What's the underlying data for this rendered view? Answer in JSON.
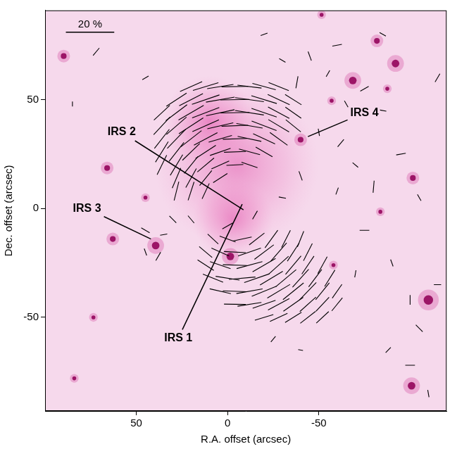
{
  "chart_data": {
    "type": "scatter",
    "x_label": "R.A. offset (arcsec)",
    "y_label": "Dec. offset (arcsec)",
    "xlim": [
      100,
      -120
    ],
    "ylim": [
      -93,
      91
    ],
    "xticks": [
      50,
      0,
      -50
    ],
    "yticks": [
      -50,
      0,
      50
    ],
    "grid": false,
    "color": "#000000",
    "scale_bar": {
      "label": "20 %",
      "value": 20,
      "x": [
        88.6,
        62.1
      ],
      "y": 81
    },
    "annotations": [
      {
        "text": "IRS 2",
        "x": 58,
        "y": 35,
        "target": [
          -8.7,
          -0.6
        ]
      },
      {
        "text": "IRS 3",
        "x": 77,
        "y": 0,
        "target": [
          42,
          -14
        ]
      },
      {
        "text": "IRS 1",
        "x": 27,
        "y": -59.5,
        "target": [
          -8,
          2
        ]
      },
      {
        "text": "IRS 4",
        "x": -75,
        "y": 44,
        "target": [
          -44,
          33
        ]
      }
    ],
    "nebula": [
      [
        -5,
        20,
        45
      ],
      [
        -3,
        -5,
        22
      ],
      [
        10,
        40,
        25
      ]
    ],
    "stars": [
      [
        89.8,
        70,
        2
      ],
      [
        -68.6,
        58.8,
        3
      ],
      [
        -92,
        66.6,
        3
      ],
      [
        -110,
        -42,
        4
      ],
      [
        -100.8,
        -81.4,
        3
      ],
      [
        -81.8,
        77,
        2
      ],
      [
        -101.5,
        14,
        2
      ],
      [
        -1.5,
        -22,
        3
      ],
      [
        39.4,
        -17,
        3
      ],
      [
        62.9,
        -14,
        2
      ],
      [
        66,
        18.6,
        2
      ],
      [
        45,
        5,
        1
      ],
      [
        -40,
        31.6,
        2
      ],
      [
        -83.7,
        -1.5,
        1
      ],
      [
        -58,
        -26,
        1
      ],
      [
        84,
        -78,
        1
      ],
      [
        73.5,
        -50,
        1
      ],
      [
        -51.5,
        89,
        1
      ],
      [
        -57,
        49.5,
        1
      ],
      [
        -87.5,
        55,
        1
      ]
    ],
    "vectors": [
      [
        20,
        56,
        10,
        114
      ],
      [
        12,
        56,
        11,
        107
      ],
      [
        4,
        56,
        11,
        99
      ],
      [
        -4,
        56,
        11,
        91
      ],
      [
        -12,
        56,
        10,
        83
      ],
      [
        -20,
        56,
        10,
        75
      ],
      [
        -28,
        56,
        9,
        68
      ],
      [
        28,
        50,
        10,
        123
      ],
      [
        20,
        50,
        11,
        117
      ],
      [
        12,
        50,
        12,
        109
      ],
      [
        4,
        50,
        12,
        100
      ],
      [
        -4,
        50,
        12,
        91
      ],
      [
        -12,
        50,
        12,
        82
      ],
      [
        -20,
        50,
        11,
        73
      ],
      [
        -28,
        50,
        10,
        65
      ],
      [
        -36,
        50,
        8,
        58
      ],
      [
        36,
        44,
        9,
        133
      ],
      [
        28,
        44,
        11,
        127
      ],
      [
        20,
        44,
        12,
        120
      ],
      [
        12,
        44,
        12,
        111
      ],
      [
        4,
        44,
        12,
        102
      ],
      [
        -4,
        44,
        12,
        91
      ],
      [
        -12,
        44,
        12,
        81
      ],
      [
        -20,
        44,
        11,
        71
      ],
      [
        -28,
        44,
        10,
        62
      ],
      [
        -36,
        44,
        8,
        55
      ],
      [
        36,
        38,
        10,
        137
      ],
      [
        28,
        38,
        11,
        131
      ],
      [
        20,
        38,
        12,
        123
      ],
      [
        12,
        38,
        12,
        114
      ],
      [
        4,
        38,
        11,
        103
      ],
      [
        -4,
        38,
        11,
        92
      ],
      [
        -12,
        38,
        11,
        80
      ],
      [
        -20,
        38,
        11,
        69
      ],
      [
        -28,
        38,
        10,
        59
      ],
      [
        -36,
        38,
        8,
        51
      ],
      [
        36,
        32,
        10,
        142
      ],
      [
        28,
        32,
        11,
        136
      ],
      [
        20,
        32,
        11,
        128
      ],
      [
        12,
        32,
        11,
        118
      ],
      [
        4,
        32,
        10,
        106
      ],
      [
        -4,
        32,
        10,
        92
      ],
      [
        -12,
        32,
        10,
        78
      ],
      [
        -20,
        32,
        10,
        65
      ],
      [
        -28,
        32,
        9,
        54
      ],
      [
        36,
        26,
        10,
        148
      ],
      [
        28,
        26,
        10,
        142
      ],
      [
        20,
        26,
        10,
        134
      ],
      [
        12,
        26,
        10,
        123
      ],
      [
        4,
        26,
        9,
        109
      ],
      [
        -4,
        26,
        9,
        92
      ],
      [
        -12,
        26,
        9,
        75
      ],
      [
        -20,
        26,
        8,
        60
      ],
      [
        36,
        20,
        9,
        154
      ],
      [
        28,
        20,
        10,
        149
      ],
      [
        20,
        20,
        9,
        141
      ],
      [
        12,
        20,
        9,
        130
      ],
      [
        4,
        20,
        8,
        114
      ],
      [
        -4,
        20,
        7,
        93
      ],
      [
        -12,
        20,
        7,
        71
      ],
      [
        28,
        14,
        9,
        157
      ],
      [
        20,
        14,
        9,
        151
      ],
      [
        12,
        14,
        8,
        141
      ],
      [
        4,
        14,
        7,
        123
      ],
      [
        28,
        8,
        8,
        166
      ],
      [
        20,
        8,
        8,
        162
      ],
      [
        12,
        8,
        7,
        155
      ],
      [
        8,
        -14,
        6,
        47
      ],
      [
        0,
        -14,
        7,
        70
      ],
      [
        -8,
        -14,
        8,
        102
      ],
      [
        -16,
        -14,
        8,
        128
      ],
      [
        -24,
        -14,
        9,
        144
      ],
      [
        -32,
        -14,
        8,
        153
      ],
      [
        -40,
        -14,
        7,
        158
      ],
      [
        12,
        -20,
        7,
        50
      ],
      [
        4,
        -20,
        8,
        66
      ],
      [
        -4,
        -20,
        9,
        87
      ],
      [
        -12,
        -20,
        10,
        109
      ],
      [
        -20,
        -20,
        10,
        127
      ],
      [
        -28,
        -20,
        10,
        139
      ],
      [
        -36,
        -20,
        9,
        147
      ],
      [
        -44,
        -20,
        8,
        153
      ],
      [
        12,
        -26,
        8,
        57
      ],
      [
        4,
        -26,
        9,
        71
      ],
      [
        -4,
        -26,
        10,
        88
      ],
      [
        -12,
        -26,
        11,
        105
      ],
      [
        -20,
        -26,
        11,
        120
      ],
      [
        -28,
        -26,
        11,
        132
      ],
      [
        -36,
        -26,
        10,
        140
      ],
      [
        -44,
        -26,
        9,
        146
      ],
      [
        -52,
        -26,
        8,
        151
      ],
      [
        8,
        -32,
        9,
        68
      ],
      [
        0,
        -32,
        10,
        81
      ],
      [
        -8,
        -32,
        11,
        95
      ],
      [
        -16,
        -32,
        11,
        109
      ],
      [
        -24,
        -32,
        11,
        121
      ],
      [
        -32,
        -32,
        11,
        130
      ],
      [
        -40,
        -32,
        10,
        138
      ],
      [
        -48,
        -32,
        9,
        143
      ],
      [
        -56,
        -32,
        8,
        148
      ],
      [
        4,
        -38,
        9,
        77
      ],
      [
        -4,
        -38,
        10,
        88
      ],
      [
        -12,
        -38,
        11,
        100
      ],
      [
        -20,
        -38,
        11,
        112
      ],
      [
        -28,
        -38,
        11,
        121
      ],
      [
        -36,
        -38,
        11,
        129
      ],
      [
        -44,
        -38,
        10,
        136
      ],
      [
        -52,
        -38,
        9,
        141
      ],
      [
        -60,
        -38,
        7,
        145
      ],
      [
        -4,
        -44,
        9,
        89
      ],
      [
        -12,
        -44,
        10,
        99
      ],
      [
        -20,
        -44,
        10,
        109
      ],
      [
        -28,
        -44,
        10,
        118
      ],
      [
        -36,
        -44,
        10,
        125
      ],
      [
        -44,
        -44,
        9,
        132
      ],
      [
        -52,
        -44,
        8,
        137
      ],
      [
        -60,
        -44,
        7,
        141
      ],
      [
        -20,
        -50,
        8,
        107
      ],
      [
        -28,
        -50,
        8,
        115
      ],
      [
        -36,
        -50,
        8,
        122
      ],
      [
        -44,
        -50,
        8,
        128
      ],
      [
        -52,
        -50,
        7,
        133
      ],
      [
        -45,
        70,
        4,
        20
      ],
      [
        -55,
        62,
        3,
        150
      ],
      [
        -60,
        75,
        4,
        100
      ],
      [
        -30,
        68,
        3,
        60
      ],
      [
        -38,
        58,
        5,
        170
      ],
      [
        -65,
        48,
        3,
        30
      ],
      [
        -75,
        55,
        4,
        120
      ],
      [
        -85,
        45,
        3,
        80
      ],
      [
        -50,
        35,
        3,
        10
      ],
      [
        -62,
        30,
        4,
        140
      ],
      [
        -70,
        20,
        3,
        50
      ],
      [
        -80,
        10,
        5,
        175
      ],
      [
        -95,
        25,
        4,
        100
      ],
      [
        -105,
        5,
        3,
        30
      ],
      [
        -60,
        8,
        3,
        160
      ],
      [
        -75,
        -10,
        4,
        90
      ],
      [
        -90,
        -25,
        3,
        20
      ],
      [
        -100,
        -42,
        4,
        0
      ],
      [
        -115,
        -35,
        3,
        90
      ],
      [
        -105,
        -55,
        4,
        45
      ],
      [
        -88,
        -65,
        3,
        135
      ],
      [
        -100,
        -72,
        4,
        90
      ],
      [
        -110,
        -85,
        3,
        10
      ],
      [
        -70,
        -30,
        3,
        170
      ],
      [
        -40,
        -65,
        2,
        80
      ],
      [
        45,
        -10,
        4,
        60
      ],
      [
        38,
        -22,
        4,
        150
      ],
      [
        35,
        -12,
        3,
        100
      ],
      [
        45,
        -20,
        3,
        20
      ],
      [
        30,
        -5,
        4,
        45
      ],
      [
        72,
        72,
        4,
        140
      ],
      [
        85,
        48,
        2,
        0
      ],
      [
        -20,
        80,
        3,
        110
      ],
      [
        0,
        -8,
        5,
        120
      ],
      [
        20,
        -5,
        4,
        40
      ],
      [
        -15,
        -3,
        4,
        150
      ],
      [
        -30,
        5,
        3,
        80
      ],
      [
        -40,
        15,
        4,
        20
      ],
      [
        -25,
        -60,
        3,
        140
      ],
      [
        45,
        60,
        3,
        120
      ],
      [
        -85,
        80,
        3,
        60
      ],
      [
        -115,
        60,
        4,
        150
      ]
    ]
  }
}
